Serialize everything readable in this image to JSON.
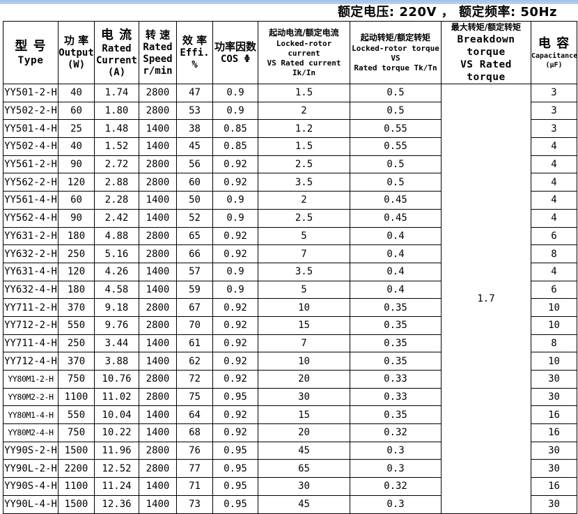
{
  "header": {
    "rating_line": "额定电压: 220V ， 额定频率: 50Hz"
  },
  "table": {
    "headers": {
      "type": {
        "cn": "型 号",
        "en": "Type"
      },
      "output": {
        "cn": "功 率",
        "en": "Output",
        "unit": "(W)"
      },
      "current": {
        "cn": "电 流",
        "en1": "Rated",
        "en2": "Current",
        "unit": "(A)"
      },
      "speed": {
        "cn": "转  速",
        "en1": "Rated",
        "en2": "Speed",
        "unit": "r/min"
      },
      "effi": {
        "cn": "效 率",
        "en": "Effi. %"
      },
      "cos": {
        "cn": "功率因数",
        "en": "COS Φ"
      },
      "locked_rotor_current": {
        "cn": "起动电流/额定电流",
        "en1": "Locked-rotor current",
        "en2": "VS Rated current Ik/In"
      },
      "locked_rotor_torque": {
        "cn": "起动转矩/额定转矩",
        "en1": "Locked-rotor torque VS",
        "en2": "Rated torque Tk/Tn"
      },
      "breakdown_torque": {
        "cn": "最大转矩/额定转矩",
        "en1": "Breakdown torque",
        "en2": "VS Rated torque"
      },
      "capacitance": {
        "cn": "电 容",
        "en": "Capacitance",
        "unit": "(μF)"
      }
    },
    "breakdown_torque_merged": "1.7",
    "rows": [
      {
        "type": "YY501-2-H",
        "output": "40",
        "current": "1.74",
        "speed": "2800",
        "effi": "47",
        "cos": "0.9",
        "ik_in": "1.5",
        "tk_tn": "0.5",
        "cap": "3",
        "cap_large": false
      },
      {
        "type": "YY502-2-H",
        "output": "60",
        "current": "1.80",
        "speed": "2800",
        "effi": "53",
        "cos": "0.9",
        "ik_in": "2",
        "tk_tn": "0.5",
        "cap": "3",
        "cap_large": false
      },
      {
        "type": "YY501-4-H",
        "output": "25",
        "current": "1.48",
        "speed": "1400",
        "effi": "38",
        "cos": "0.85",
        "ik_in": "1.2",
        "tk_tn": "0.55",
        "cap": "3",
        "cap_large": false
      },
      {
        "type": "YY502-4-H",
        "output": "40",
        "current": "1.52",
        "speed": "1400",
        "effi": "45",
        "cos": "0.85",
        "ik_in": "1.5",
        "tk_tn": "0.55",
        "cap": "4",
        "cap_large": false
      },
      {
        "type": "YY561-2-H",
        "output": "90",
        "current": "2.72",
        "speed": "2800",
        "effi": "56",
        "cos": "0.92",
        "ik_in": "2.5",
        "tk_tn": "0.5",
        "cap": "4",
        "cap_large": false
      },
      {
        "type": "YY562-2-H",
        "output": "120",
        "current": "2.88",
        "speed": "2800",
        "effi": "60",
        "cos": "0.92",
        "ik_in": "3.5",
        "tk_tn": "0.5",
        "cap": "4",
        "cap_large": false
      },
      {
        "type": "YY561-4-H",
        "output": "60",
        "current": "2.28",
        "speed": "1400",
        "effi": "50",
        "cos": "0.9",
        "ik_in": "2",
        "tk_tn": "0.45",
        "cap": "4",
        "cap_large": false
      },
      {
        "type": "YY562-4-H",
        "output": "90",
        "current": "2.42",
        "speed": "1400",
        "effi": "52",
        "cos": "0.9",
        "ik_in": "2.5",
        "tk_tn": "0.45",
        "cap": "4",
        "cap_large": false
      },
      {
        "type": "YY631-2-H",
        "output": "180",
        "current": "4.88",
        "speed": "2800",
        "effi": "65",
        "cos": "0.92",
        "ik_in": "5",
        "tk_tn": "0.4",
        "cap": "6",
        "cap_large": false
      },
      {
        "type": "YY632-2-H",
        "output": "250",
        "current": "5.16",
        "speed": "2800",
        "effi": "66",
        "cos": "0.92",
        "ik_in": "7",
        "tk_tn": "0.4",
        "cap": "8",
        "cap_large": false
      },
      {
        "type": "YY631-4-H",
        "output": "120",
        "current": "4.26",
        "speed": "1400",
        "effi": "57",
        "cos": "0.9",
        "ik_in": "3.5",
        "tk_tn": "0.4",
        "cap": "4",
        "cap_large": false
      },
      {
        "type": "YY632-4-H",
        "output": "180",
        "current": "4.58",
        "speed": "1400",
        "effi": "59",
        "cos": "0.9",
        "ik_in": "5",
        "tk_tn": "0.4",
        "cap": "6",
        "cap_large": false
      },
      {
        "type": "YY711-2-H",
        "output": "370",
        "current": "9.18",
        "speed": "2800",
        "effi": "67",
        "cos": "0.92",
        "ik_in": "10",
        "tk_tn": "0.35",
        "cap": "10",
        "cap_large": false
      },
      {
        "type": "YY712-2-H",
        "output": "550",
        "current": "9.76",
        "speed": "2800",
        "effi": "70",
        "cos": "0.92",
        "ik_in": "15",
        "tk_tn": "0.35",
        "cap": "10",
        "cap_large": false
      },
      {
        "type": "YY711-4-H",
        "output": "250",
        "current": "3.44",
        "speed": "1400",
        "effi": "61",
        "cos": "0.92",
        "ik_in": "7",
        "tk_tn": "0.35",
        "cap": "8",
        "cap_large": false
      },
      {
        "type": "YY712-4-H",
        "output": "370",
        "current": "3.88",
        "speed": "1400",
        "effi": "62",
        "cos": "0.92",
        "ik_in": "10",
        "tk_tn": "0.35",
        "cap": "10",
        "cap_large": false
      },
      {
        "type": "YY80M1-2-H",
        "output": "750",
        "current": "10.76",
        "speed": "2800",
        "effi": "72",
        "cos": "0.92",
        "ik_in": "20",
        "tk_tn": "0.33",
        "cap": "30",
        "cap_large": false
      },
      {
        "type": "YY80M2-2-H",
        "output": "1100",
        "current": "11.02",
        "speed": "2800",
        "effi": "75",
        "cos": "0.95",
        "ik_in": "30",
        "tk_tn": "0.33",
        "cap": "30",
        "cap_large": false
      },
      {
        "type": "YY80M1-4-H",
        "output": "550",
        "current": "10.04",
        "speed": "1400",
        "effi": "64",
        "cos": "0.92",
        "ik_in": "15",
        "tk_tn": "0.35",
        "cap": "16",
        "cap_large": false
      },
      {
        "type": "YY80M2-4-H",
        "output": "750",
        "current": "10.22",
        "speed": "1400",
        "effi": "68",
        "cos": "0.92",
        "ik_in": "20",
        "tk_tn": "0.32",
        "cap": "16",
        "cap_large": false
      },
      {
        "type": "YY90S-2-H",
        "output": "1500",
        "current": "11.96",
        "speed": "2800",
        "effi": "76",
        "cos": "0.95",
        "ik_in": "45",
        "tk_tn": "0.3",
        "cap": "30",
        "cap_large": false
      },
      {
        "type": "YY90L-2-H",
        "output": "2200",
        "current": "12.52",
        "speed": "2800",
        "effi": "77",
        "cos": "0.95",
        "ik_in": "65",
        "tk_tn": "0.3",
        "cap": "30",
        "cap_large": true
      },
      {
        "type": "YY90S-4-H",
        "output": "1100",
        "current": "11.24",
        "speed": "1400",
        "effi": "71",
        "cos": "0.95",
        "ik_in": "30",
        "tk_tn": "0.32",
        "cap": "16",
        "cap_large": true
      },
      {
        "type": "YY90L-4-H",
        "output": "1500",
        "current": "12.36",
        "speed": "1400",
        "effi": "73",
        "cos": "0.95",
        "ik_in": "45",
        "tk_tn": "0.3",
        "cap": "30",
        "cap_large": true
      }
    ]
  }
}
